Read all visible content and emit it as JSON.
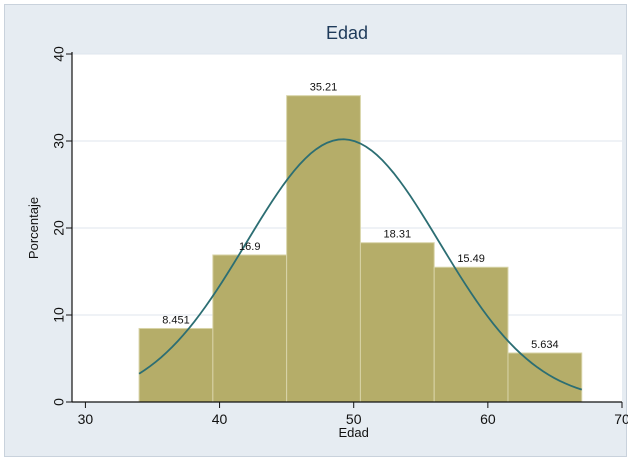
{
  "chart_data": {
    "type": "bar",
    "title": "Edad",
    "xlabel": "Edad",
    "ylabel": "Porcentaje",
    "xlim": [
      29,
      70
    ],
    "ylim": [
      0,
      40
    ],
    "x_ticks": [
      30,
      40,
      50,
      60,
      70
    ],
    "y_ticks": [
      0,
      10,
      20,
      30,
      40
    ],
    "bins": [
      {
        "start": 34,
        "end": 39.5,
        "value": 8.451,
        "label": "8.451"
      },
      {
        "start": 39.5,
        "end": 45,
        "value": 16.9,
        "label": "16.9"
      },
      {
        "start": 45,
        "end": 50.5,
        "value": 35.21,
        "label": "35.21"
      },
      {
        "start": 50.5,
        "end": 56,
        "value": 18.31,
        "label": "18.31"
      },
      {
        "start": 56,
        "end": 61.5,
        "value": 15.49,
        "label": "15.49"
      },
      {
        "start": 61.5,
        "end": 67,
        "value": 5.634,
        "label": "5.634"
      }
    ],
    "density_curve": {
      "mean": 49.2,
      "sd": 7.2,
      "peak": 30.2,
      "from": 34,
      "to": 67
    },
    "grid": true,
    "colors": {
      "bar": "#b5ad69",
      "bar_edge": "#d8d4a8",
      "curve": "#2c6e73",
      "grid": "#dfe6ee",
      "title": "#1e3a5a"
    }
  }
}
